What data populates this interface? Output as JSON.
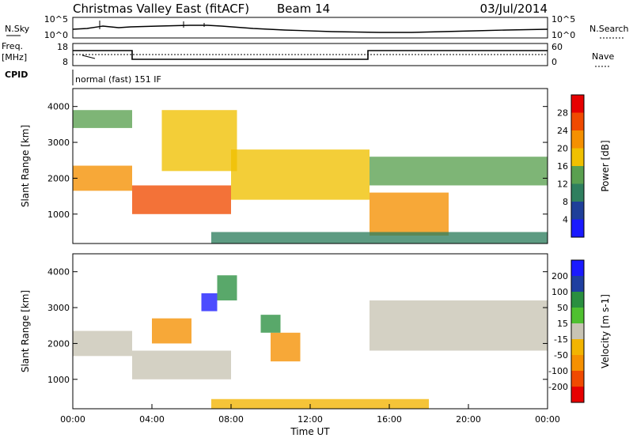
{
  "header": {
    "title": "Christmas Valley East (fitACF)",
    "beam": "Beam 14",
    "date": "03/Jul/2014"
  },
  "noise_panel": {
    "left_label": "N.Sky",
    "left_ticks": [
      "10^5",
      "10^0"
    ],
    "right_label": "N.Search",
    "right_ticks": [
      "10^5",
      "10^0"
    ]
  },
  "freq_panel": {
    "left_label_1": "Freq.",
    "left_label_2": "[MHz]",
    "left_ticks": [
      "18",
      "8"
    ],
    "right_label": "Nave",
    "right_ticks": [
      "60",
      "0"
    ]
  },
  "cpid_panel": {
    "label": "CPID",
    "program": "normal (fast) 151 IF"
  },
  "colors": {
    "power_scale": [
      "#1a1aff",
      "#1f3f99",
      "#2f7f5f",
      "#5aa050",
      "#f0c000",
      "#f59000",
      "#f04a00",
      "#e60000"
    ],
    "velocity_scale": [
      "#e60000",
      "#f04a00",
      "#f59000",
      "#f2b400",
      "#c8c4b4",
      "#4fc030",
      "#2a8f40",
      "#1f3fa0",
      "#1a1aff"
    ]
  },
  "chart_data": [
    {
      "type": "heatmap",
      "name": "power",
      "xlabel": "Time UT",
      "ylabel": "Slant Range [km]",
      "xlim": [
        "00:00",
        "24:00"
      ],
      "ylim": [
        180,
        4500
      ],
      "x_ticks": [
        "00:00",
        "04:00",
        "08:00",
        "12:00",
        "16:00",
        "20:00",
        "00:00"
      ],
      "y_ticks": [
        1000,
        2000,
        3000,
        4000
      ],
      "colorbar": {
        "label": "Power [dB]",
        "ticks": [
          "4",
          "8",
          "12",
          "16",
          "20",
          "24",
          "28"
        ]
      },
      "bands": [
        {
          "start_hour": 0.0,
          "end_hour": 3.0,
          "range_km": [
            1650,
            2350
          ],
          "power_db": 22
        },
        {
          "start_hour": 0.0,
          "end_hour": 3.0,
          "range_km": [
            3400,
            3900
          ],
          "power_db": 14
        },
        {
          "start_hour": 3.0,
          "end_hour": 8.0,
          "range_km": [
            1000,
            1800
          ],
          "power_db": 26
        },
        {
          "start_hour": 4.5,
          "end_hour": 8.3,
          "range_km": [
            2200,
            3900
          ],
          "power_db": 18
        },
        {
          "start_hour": 8.0,
          "end_hour": 15.0,
          "range_km": [
            1400,
            2800
          ],
          "power_db": 16
        },
        {
          "start_hour": 15.0,
          "end_hour": 19.0,
          "range_km": [
            400,
            1600
          ],
          "power_db": 20
        },
        {
          "start_hour": 15.0,
          "end_hour": 24.0,
          "range_km": [
            1800,
            2600
          ],
          "power_db": 14
        },
        {
          "start_hour": 7.0,
          "end_hour": 24.0,
          "range_km": [
            180,
            500
          ],
          "power_db": 10
        }
      ]
    },
    {
      "type": "heatmap",
      "name": "velocity",
      "xlabel": "Time UT",
      "ylabel": "Slant Range [km]",
      "xlim": [
        "00:00",
        "24:00"
      ],
      "ylim": [
        180,
        4500
      ],
      "x_ticks": [
        "00:00",
        "04:00",
        "08:00",
        "12:00",
        "16:00",
        "20:00",
        "00:00"
      ],
      "y_ticks": [
        1000,
        2000,
        3000,
        4000
      ],
      "colorbar": {
        "label": "Velocity [m s-1]",
        "ticks": [
          "200",
          "100",
          "50",
          "15",
          "-15",
          "-50",
          "-100",
          "-200"
        ]
      },
      "bands": [
        {
          "start_hour": 0.0,
          "end_hour": 3.0,
          "range_km": [
            1650,
            2350
          ],
          "velocity_ms": 0
        },
        {
          "start_hour": 3.0,
          "end_hour": 8.0,
          "range_km": [
            1000,
            1800
          ],
          "velocity_ms": 0
        },
        {
          "start_hour": 4.0,
          "end_hour": 6.0,
          "range_km": [
            2000,
            2700
          ],
          "velocity_ms": -60
        },
        {
          "start_hour": 6.5,
          "end_hour": 7.3,
          "range_km": [
            2900,
            3400
          ],
          "velocity_ms": 200
        },
        {
          "start_hour": 7.3,
          "end_hour": 8.3,
          "range_km": [
            3200,
            3900
          ],
          "velocity_ms": 60
        },
        {
          "start_hour": 10.0,
          "end_hour": 11.5,
          "range_km": [
            1500,
            2300
          ],
          "velocity_ms": -60
        },
        {
          "start_hour": 9.5,
          "end_hour": 10.5,
          "range_km": [
            2300,
            2800
          ],
          "velocity_ms": 60
        },
        {
          "start_hour": 15.0,
          "end_hour": 24.0,
          "range_km": [
            1800,
            3200
          ],
          "velocity_ms": 0
        },
        {
          "start_hour": 7.0,
          "end_hour": 18.0,
          "range_km": [
            180,
            450
          ],
          "velocity_ms": -40
        }
      ]
    }
  ]
}
